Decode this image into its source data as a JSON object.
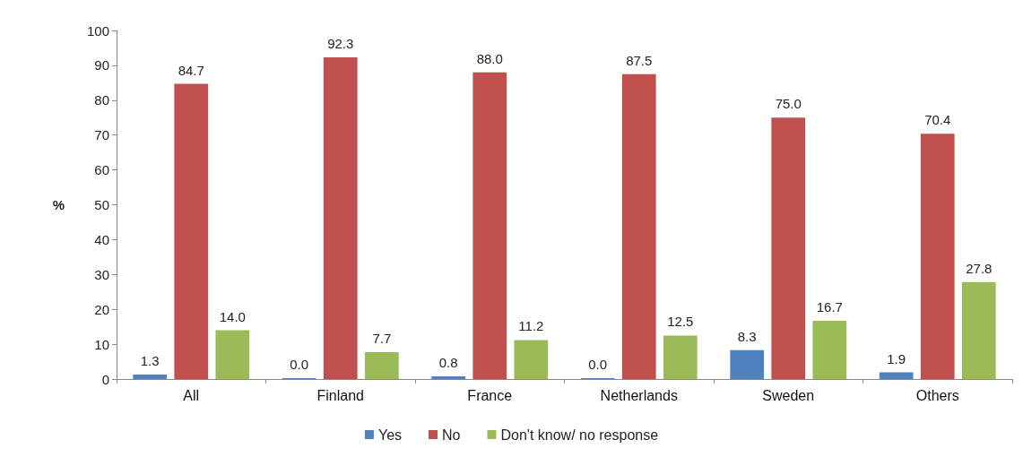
{
  "chart_data": {
    "type": "bar",
    "ylabel": "%",
    "categories": [
      "All",
      "Finland",
      "France",
      "Netherlands",
      "Sweden",
      "Others"
    ],
    "series": [
      {
        "name": "Yes",
        "color": "#4f81bd",
        "values": [
          1.3,
          0.0,
          0.8,
          0.0,
          8.3,
          1.9
        ],
        "value_labels": [
          "1.3",
          "0.0",
          "0.8",
          "0.0",
          "8.3",
          "1.9"
        ]
      },
      {
        "name": "No",
        "color": "#c0504d",
        "values": [
          84.7,
          92.3,
          88.0,
          87.5,
          75.0,
          70.4
        ],
        "value_labels": [
          "84.7",
          "92.3",
          "88.0",
          "87.5",
          "75.0",
          "70.4"
        ]
      },
      {
        "name": "Don't know/ no response",
        "color": "#9bbb59",
        "values": [
          14.0,
          7.7,
          11.2,
          12.5,
          16.7,
          27.8
        ],
        "value_labels": [
          "14.0",
          "7.7",
          "11.2",
          "12.5",
          "16.7",
          "27.8"
        ]
      }
    ],
    "ylim": [
      0,
      100
    ],
    "yticks": [
      0,
      10,
      20,
      30,
      40,
      50,
      60,
      70,
      80,
      90,
      100
    ],
    "grid": false,
    "legend": "bottom"
  }
}
